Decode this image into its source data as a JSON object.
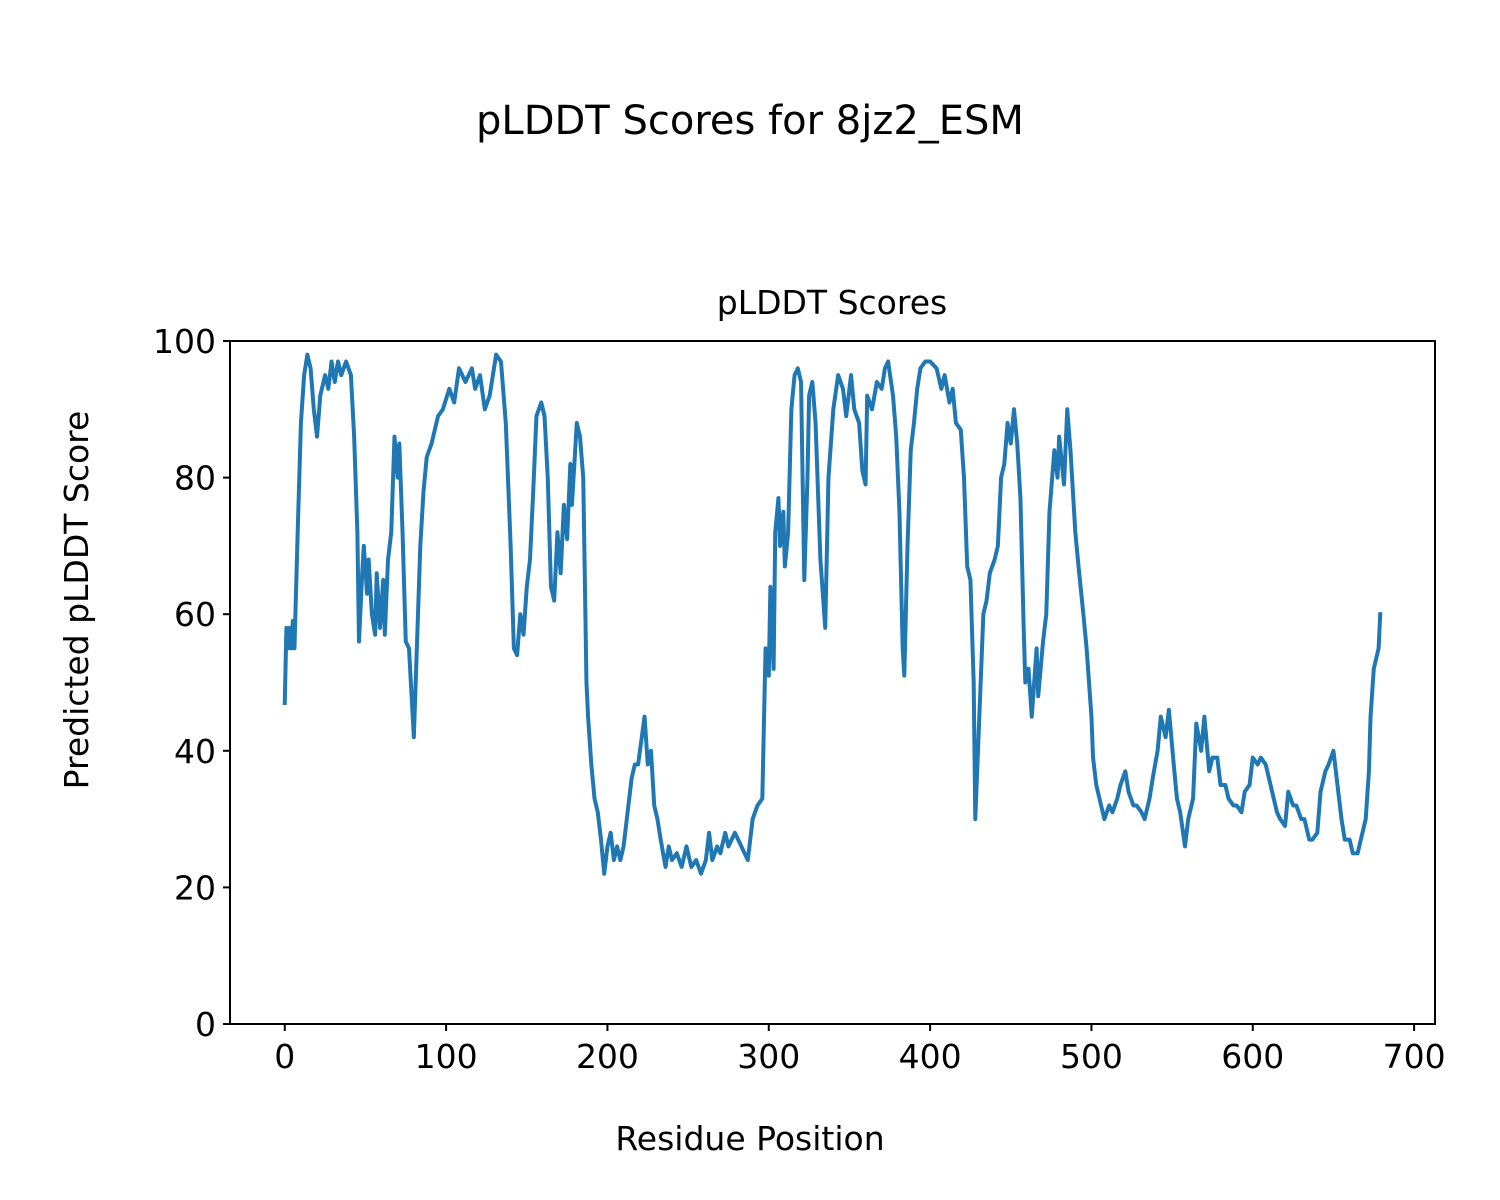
{
  "chart_data": {
    "type": "line",
    "title": "pLDDT Scores for 8jz2_ESM",
    "subtitle": "pLDDT Scores",
    "xlabel": "Residue Position",
    "ylabel": "Predicted pLDDT Score",
    "color": "#1f77b4",
    "xlim": [
      -33.95,
      712.95
    ],
    "ylim": [
      0,
      100
    ],
    "xticks": [
      0,
      100,
      200,
      300,
      400,
      500,
      600,
      700
    ],
    "yticks": [
      0,
      20,
      40,
      60,
      80,
      100
    ],
    "grid": false,
    "x": [
      0,
      1,
      2,
      3,
      4,
      5,
      6,
      8,
      10,
      12,
      14,
      16,
      18,
      20,
      22,
      25,
      27,
      29,
      31,
      33,
      35,
      38,
      41,
      43,
      45,
      46,
      48,
      49,
      51,
      52,
      54,
      56,
      57,
      59,
      61,
      62,
      64,
      66,
      68,
      70,
      71,
      73,
      75,
      77,
      80,
      82,
      84,
      86,
      88,
      91,
      95,
      98,
      102,
      105,
      108,
      112,
      116,
      118,
      121,
      124,
      127,
      131,
      134,
      137,
      140,
      142,
      144,
      146,
      148,
      150,
      152,
      154,
      156,
      159,
      161,
      163,
      165,
      167,
      169,
      171,
      173,
      175,
      177,
      178,
      181,
      183,
      185,
      187,
      188,
      190,
      192,
      194,
      196,
      198,
      200,
      202,
      204,
      206,
      208,
      210,
      213,
      215,
      217,
      219,
      223,
      225,
      227,
      229,
      231,
      233,
      236,
      238,
      240,
      243,
      246,
      249,
      252,
      255,
      258,
      261,
      263,
      265,
      268,
      270,
      273,
      275,
      279,
      283,
      287,
      290,
      293,
      296,
      298,
      300,
      301,
      303,
      304,
      306,
      307,
      309,
      310,
      312,
      314,
      316,
      318,
      320,
      322,
      324,
      325,
      327,
      329,
      332,
      335,
      337,
      340,
      343,
      346,
      348,
      351,
      353,
      356,
      358,
      360,
      361,
      364,
      367,
      370,
      372,
      374,
      377,
      379,
      381,
      383,
      384,
      386,
      388,
      390,
      392,
      394,
      397,
      400,
      404,
      407,
      409,
      412,
      414,
      416,
      419,
      421,
      423,
      425,
      427,
      428,
      430,
      433,
      435,
      437,
      440,
      442,
      444,
      446,
      448,
      450,
      452,
      454,
      456,
      458,
      459,
      461,
      463,
      466,
      467,
      470,
      472,
      474,
      477,
      479,
      480,
      483,
      485,
      487,
      490,
      492,
      495,
      497,
      500,
      501,
      503,
      506,
      508,
      511,
      513,
      516,
      518,
      521,
      523,
      526,
      528,
      531,
      533,
      536,
      538,
      541,
      543,
      546,
      548,
      551,
      553,
      555,
      558,
      560,
      563,
      565,
      568,
      570,
      573,
      575,
      578,
      580,
      583,
      585,
      588,
      590,
      593,
      595,
      598,
      600,
      603,
      605,
      608,
      610,
      613,
      615,
      617,
      620,
      622,
      625,
      627,
      630,
      632,
      635,
      637,
      640,
      642,
      645,
      647,
      650,
      652,
      655,
      657,
      660,
      662,
      665,
      667,
      670,
      672,
      673,
      675,
      676,
      678,
      679
    ],
    "values": [
      47,
      58,
      55,
      58,
      55,
      59,
      55,
      72,
      88,
      95,
      98,
      96,
      90,
      86,
      92,
      95,
      93,
      97,
      94,
      97,
      95,
      97,
      95,
      86,
      72,
      56,
      66,
      70,
      63,
      68,
      60,
      57,
      66,
      58,
      65,
      57,
      68,
      72,
      86,
      80,
      85,
      72,
      56,
      55,
      42,
      56,
      70,
      78,
      83,
      85,
      89,
      90,
      93,
      91,
      96,
      94,
      96,
      93,
      95,
      90,
      92,
      98,
      97,
      88,
      70,
      55,
      54,
      60,
      57,
      64,
      68,
      78,
      89,
      91,
      89,
      80,
      64,
      62,
      72,
      66,
      76,
      71,
      82,
      76,
      88,
      86,
      80,
      50,
      45,
      38,
      33,
      31,
      27,
      22,
      26,
      28,
      24,
      26,
      24,
      26,
      32,
      36,
      38,
      38,
      45,
      38,
      40,
      32,
      30,
      27,
      23,
      26,
      24,
      25,
      23,
      26,
      23,
      24,
      22,
      24,
      28,
      24,
      26,
      25,
      28,
      26,
      28,
      26,
      24,
      30,
      32,
      33,
      55,
      51,
      64,
      52,
      72,
      77,
      70,
      75,
      67,
      72,
      90,
      95,
      96,
      94,
      65,
      80,
      92,
      94,
      88,
      68,
      58,
      80,
      90,
      95,
      93,
      89,
      95,
      90,
      88,
      81,
      79,
      92,
      90,
      94,
      93,
      96,
      97,
      92,
      86,
      75,
      55,
      51,
      70,
      84,
      88,
      93,
      96,
      97,
      97,
      96,
      93,
      95,
      91,
      93,
      88,
      87,
      80,
      67,
      65,
      50,
      30,
      42,
      60,
      62,
      66,
      68,
      70,
      80,
      82,
      88,
      85,
      90,
      85,
      77,
      58,
      50,
      52,
      45,
      55,
      48,
      56,
      60,
      75,
      84,
      80,
      86,
      79,
      90,
      84,
      72,
      67,
      60,
      55,
      45,
      39,
      35,
      32,
      30,
      32,
      31,
      33,
      35,
      37,
      34,
      32,
      32,
      31,
      30,
      33,
      36,
      40,
      45,
      42,
      46,
      38,
      33,
      31,
      26,
      30,
      33,
      44,
      40,
      45,
      37,
      39,
      39,
      35,
      35,
      33,
      32,
      32,
      31,
      34,
      35,
      39,
      38,
      39,
      38,
      36,
      33,
      31,
      30,
      29,
      34,
      32,
      32,
      30,
      30,
      27,
      27,
      28,
      34,
      37,
      38,
      40,
      36,
      30,
      27,
      27,
      25,
      25,
      27,
      30,
      37,
      45,
      52,
      53,
      55,
      60
    ]
  }
}
